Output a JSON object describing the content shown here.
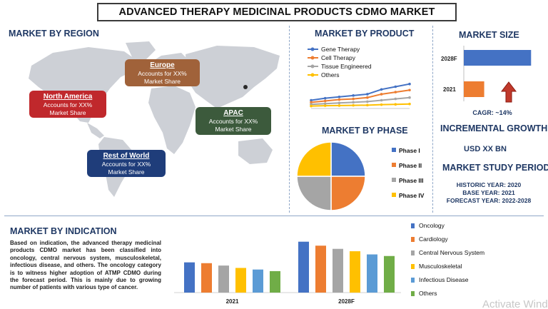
{
  "title": "ADVANCED THERAPY MEDICINAL PRODUCTS CDMO MARKET",
  "region": {
    "title": "MARKET BY REGION",
    "boxes": [
      {
        "name": "North America",
        "line1": "Accounts for XX%",
        "line2": "Market Share",
        "color": "#c0282c"
      },
      {
        "name": "Europe",
        "line1": "Accounts for XX%",
        "line2": "Market Share",
        "color": "#a0623a"
      },
      {
        "name": "APAC",
        "line1": "Accounts for XX%",
        "line2": "Market Share",
        "color": "#3c5a3c"
      },
      {
        "name": "Rest of World",
        "line1": "Accounts for XX%",
        "line2": "Market Share",
        "color": "#1f3d7a"
      }
    ]
  },
  "product": {
    "title": "MARKET BY PRODUCT",
    "legend": [
      "Gene Therapy",
      "Cell Therapy",
      "Tissue Engineered",
      "Others"
    ]
  },
  "phase": {
    "title": "MARKET BY PHASE",
    "legend": [
      "Phase I",
      "Phase II",
      "Phase III",
      "Phase IV"
    ]
  },
  "size": {
    "title": "MARKET SIZE",
    "labels": [
      "2028F",
      "2021"
    ],
    "cagr": "CAGR:  ~14%"
  },
  "growth": {
    "title": "INCREMENTAL GROWTH",
    "value": "USD XX BN"
  },
  "study": {
    "title": "MARKET STUDY PERIOD",
    "historic": "HISTORIC YEAR: 2020",
    "base": "BASE YEAR: 2021",
    "forecast": "FORECAST YEAR: 2022-2028"
  },
  "indication": {
    "title": "MARKET BY INDICATION",
    "paragraph": "Based on indication, the advanced therapy medicinal products CDMO market has been classified into oncology, central nervous system, musculoskeletal, infectious disease, and others. The oncology category is to witness higher adoption of ATMP CDMO during the forecast period. This is mainly due to growing number of patients with various type of cancer.",
    "legend": [
      "Oncology",
      "Cardiology",
      "Central Nervous System",
      "Musculoskeletal",
      "Infectious Disease",
      "Others"
    ]
  },
  "colors": {
    "blue": "#4472c4",
    "orange": "#ed7d31",
    "gray": "#a5a5a5",
    "yellow": "#ffc000",
    "lightblue": "#5b9bd5",
    "green": "#70ad47",
    "navy": "#1f3864"
  },
  "watermark": "Activate Windo",
  "chart_data": [
    {
      "type": "line",
      "title": "MARKET BY PRODUCT",
      "categories": [
        "",
        "",
        "",
        "",
        "",
        "",
        "",
        ""
      ],
      "series": [
        {
          "name": "Gene Therapy",
          "values": [
            1.0,
            1.3,
            1.5,
            1.7,
            1.9,
            2.6,
            3.0,
            3.4
          ]
        },
        {
          "name": "Cell Therapy",
          "values": [
            0.7,
            0.9,
            1.1,
            1.2,
            1.4,
            1.9,
            2.2,
            2.5
          ]
        },
        {
          "name": "Tissue Engineered",
          "values": [
            0.4,
            0.5,
            0.6,
            0.7,
            0.8,
            1.0,
            1.2,
            1.4
          ]
        },
        {
          "name": "Others",
          "values": [
            0.15,
            0.2,
            0.22,
            0.25,
            0.28,
            0.35,
            0.4,
            0.45
          ]
        }
      ],
      "ylim": [
        0,
        4
      ]
    },
    {
      "type": "pie",
      "title": "MARKET BY PHASE",
      "categories": [
        "Phase I",
        "Phase II",
        "Phase III",
        "Phase IV"
      ],
      "values": [
        25,
        25,
        25,
        25
      ]
    },
    {
      "type": "bar",
      "title": "MARKET SIZE",
      "categories": [
        "2028F",
        "2021"
      ],
      "values": [
        3.3,
        1.0
      ],
      "xlim": [
        0,
        3.5
      ]
    },
    {
      "type": "bar",
      "title": "MARKET BY INDICATION",
      "categories": [
        "2021",
        "2028F"
      ],
      "series": [
        {
          "name": "Oncology",
          "values": [
            38,
            64
          ]
        },
        {
          "name": "Cardiology",
          "values": [
            37,
            59
          ]
        },
        {
          "name": "Central Nervous System",
          "values": [
            34,
            55
          ]
        },
        {
          "name": "Musculoskeletal",
          "values": [
            31,
            52
          ]
        },
        {
          "name": "Infectious Disease",
          "values": [
            29,
            48
          ]
        },
        {
          "name": "Others",
          "values": [
            27,
            46
          ]
        }
      ],
      "ylim": [
        0,
        70
      ]
    }
  ]
}
